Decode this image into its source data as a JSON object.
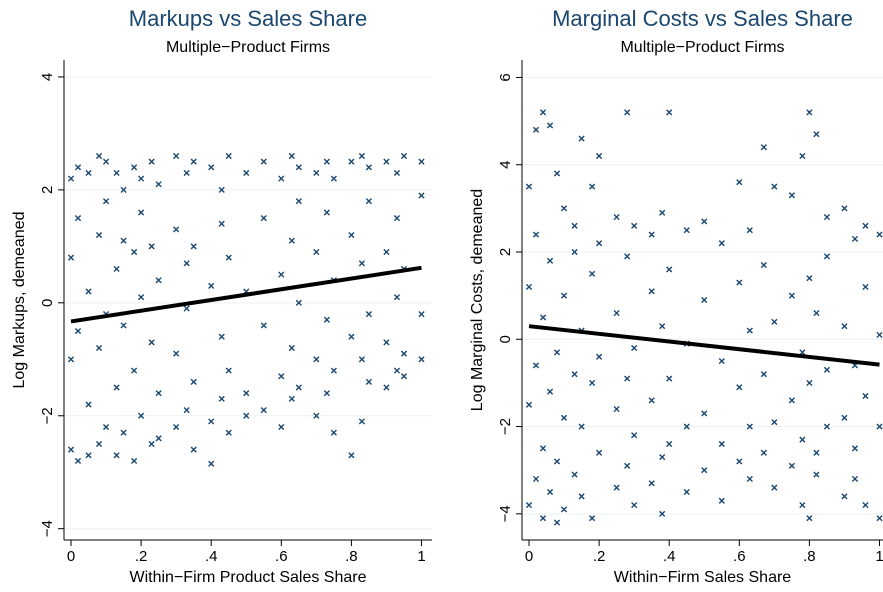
{
  "chart_data": [
    {
      "type": "scatter",
      "title": "Markups vs Sales Share",
      "subtitle": "Multiple−Product Firms",
      "x_label": "Within−Firm Product Sales Share",
      "y_label": "Log Markups, demeaned",
      "xlim": [
        -0.02,
        1.03
      ],
      "ylim": [
        -4.2,
        4.3
      ],
      "xticks": [
        0,
        {
          "value": 0.2,
          "label": ".2"
        },
        {
          "value": 0.4,
          "label": ".4"
        },
        {
          "value": 0.6,
          "label": ".6"
        },
        {
          "value": 0.8,
          "label": ".8"
        },
        1
      ],
      "yticks": [
        {
          "value": -4,
          "label": "−4"
        },
        {
          "value": -2,
          "label": "−2"
        },
        0,
        2,
        4
      ],
      "grid": true,
      "color": "#1a476f",
      "points": {
        "x": [
          0,
          0,
          0,
          0,
          0.02,
          0.02,
          0.02,
          0.02,
          0.05,
          0.05,
          0.05,
          0.05,
          0.08,
          0.08,
          0.08,
          0.08,
          0.1,
          0.1,
          0.1,
          0.1,
          0.13,
          0.13,
          0.13,
          0.13,
          0.15,
          0.15,
          0.15,
          0.15,
          0.18,
          0.18,
          0.18,
          0.18,
          0.2,
          0.2,
          0.2,
          0.2,
          0.23,
          0.23,
          0.23,
          0.23,
          0.25,
          0.25,
          0.25,
          0.25,
          0.3,
          0.3,
          0.3,
          0.3,
          0.33,
          0.33,
          0.33,
          0.33,
          0.35,
          0.35,
          0.35,
          0.35,
          0.4,
          0.4,
          0.4,
          0.4,
          0.43,
          0.43,
          0.43,
          0.43,
          0.45,
          0.45,
          0.45,
          0.45,
          0.5,
          0.5,
          0.5,
          0.5,
          0.55,
          0.55,
          0.55,
          0.55,
          0.6,
          0.6,
          0.6,
          0.6,
          0.63,
          0.63,
          0.63,
          0.63,
          0.65,
          0.65,
          0.65,
          0.65,
          0.7,
          0.7,
          0.7,
          0.7,
          0.73,
          0.73,
          0.73,
          0.73,
          0.75,
          0.75,
          0.75,
          0.75,
          0.8,
          0.8,
          0.8,
          0.8,
          0.83,
          0.83,
          0.83,
          0.83,
          0.85,
          0.85,
          0.85,
          0.85,
          0.9,
          0.9,
          0.9,
          0.9,
          0.93,
          0.93,
          0.93,
          0.93,
          0.95,
          0.95,
          0.95,
          0.95,
          1,
          1,
          1,
          1
        ],
        "y": [
          2.2,
          0.8,
          -1.0,
          -2.6,
          2.4,
          -0.5,
          1.5,
          -2.8,
          2.3,
          0.2,
          -1.8,
          -2.7,
          2.6,
          1.2,
          -0.8,
          -2.5,
          2.5,
          -0.2,
          -2.2,
          1.8,
          2.3,
          0.6,
          -1.5,
          -2.7,
          2.0,
          -0.4,
          -2.3,
          1.1,
          2.4,
          0.9,
          -1.2,
          -2.8,
          2.2,
          0.1,
          -2.0,
          1.6,
          2.5,
          -0.7,
          -2.5,
          1.0,
          2.1,
          0.4,
          -1.6,
          -2.4,
          2.6,
          1.3,
          -0.9,
          -2.2,
          2.3,
          -0.1,
          -1.9,
          0.7,
          2.5,
          1.0,
          -1.4,
          -2.6,
          2.4,
          0.3,
          -2.1,
          -2.85,
          2.0,
          -0.6,
          -1.7,
          1.4,
          2.6,
          0.8,
          -1.2,
          -2.3,
          2.3,
          0.2,
          -1.6,
          -2.0,
          2.5,
          1.5,
          -0.4,
          -1.9,
          2.2,
          0.5,
          -1.3,
          -2.2,
          2.6,
          1.1,
          -0.8,
          -1.7,
          2.4,
          0.0,
          -1.5,
          1.8,
          2.3,
          0.9,
          -1.0,
          -2.0,
          2.5,
          1.6,
          -0.3,
          -1.6,
          2.2,
          0.4,
          -1.2,
          -2.3,
          2.5,
          1.2,
          -0.6,
          -2.7,
          2.6,
          0.7,
          -1.0,
          -2.1,
          2.4,
          1.8,
          -0.2,
          -1.4,
          2.5,
          0.9,
          -0.7,
          -1.5,
          2.3,
          1.5,
          0.1,
          -1.2,
          2.6,
          0.6,
          -0.9,
          -1.3,
          2.5,
          1.9,
          -0.2,
          -1.0
        ]
      },
      "fit_line": {
        "x": [
          0,
          1
        ],
        "y": [
          -0.33,
          0.62
        ],
        "color": "#000000"
      }
    },
    {
      "type": "scatter",
      "title": "Marginal Costs vs Sales Share",
      "subtitle": "Multiple−Product Firms",
      "x_label": "Within−Firm Sales Share",
      "y_label": "Log Marginal Costs, demeaned",
      "xlim": [
        -0.02,
        1.01
      ],
      "ylim": [
        -4.6,
        6.4
      ],
      "xticks": [
        0,
        {
          "value": 0.2,
          "label": ".2"
        },
        {
          "value": 0.4,
          "label": ".4"
        },
        {
          "value": 0.6,
          "label": ".6"
        },
        {
          "value": 0.8,
          "label": ".8"
        },
        1
      ],
      "yticks": [
        {
          "value": -4,
          "label": "−4"
        },
        {
          "value": -2,
          "label": "−2"
        },
        0,
        2,
        4,
        6
      ],
      "grid": true,
      "color": "#1a476f",
      "points": {
        "x": [
          0,
          0,
          0,
          0,
          0.02,
          0.02,
          0.02,
          0.02,
          0.04,
          0.04,
          0.04,
          0.04,
          0.06,
          0.06,
          0.06,
          0.06,
          0.08,
          0.08,
          0.08,
          0.08,
          0.1,
          0.1,
          0.1,
          0.1,
          0.13,
          0.13,
          0.13,
          0.13,
          0.15,
          0.15,
          0.15,
          0.15,
          0.18,
          0.18,
          0.18,
          0.18,
          0.2,
          0.2,
          0.2,
          0.2,
          0.25,
          0.25,
          0.25,
          0.25,
          0.28,
          0.28,
          0.28,
          0.28,
          0.3,
          0.3,
          0.3,
          0.3,
          0.35,
          0.35,
          0.35,
          0.35,
          0.38,
          0.38,
          0.38,
          0.38,
          0.4,
          0.4,
          0.4,
          0.4,
          0.45,
          0.45,
          0.45,
          0.45,
          0.5,
          0.5,
          0.5,
          0.5,
          0.55,
          0.55,
          0.55,
          0.55,
          0.6,
          0.6,
          0.6,
          0.6,
          0.63,
          0.63,
          0.63,
          0.63,
          0.67,
          0.67,
          0.67,
          0.67,
          0.7,
          0.7,
          0.7,
          0.7,
          0.75,
          0.75,
          0.75,
          0.75,
          0.78,
          0.78,
          0.78,
          0.78,
          0.8,
          0.8,
          0.8,
          0.8,
          0.82,
          0.82,
          0.82,
          0.82,
          0.85,
          0.85,
          0.85,
          0.85,
          0.9,
          0.9,
          0.9,
          0.9,
          0.93,
          0.93,
          0.93,
          0.93,
          0.96,
          0.96,
          0.96,
          0.96,
          1,
          1,
          1,
          1
        ],
        "y": [
          3.5,
          1.2,
          -1.5,
          -3.8,
          4.8,
          2.4,
          -0.6,
          -3.2,
          5.2,
          0.5,
          -2.5,
          -4.1,
          4.9,
          1.8,
          -1.2,
          -3.5,
          3.8,
          -0.3,
          -2.8,
          -4.2,
          3.0,
          1.0,
          -1.8,
          -3.9,
          2.6,
          -0.8,
          -3.1,
          2.0,
          4.6,
          0.2,
          -2.0,
          -3.6,
          3.5,
          1.5,
          -1.0,
          -4.1,
          4.2,
          -0.4,
          -2.6,
          2.2,
          2.8,
          0.6,
          -1.6,
          -3.4,
          5.2,
          1.9,
          -2.9,
          -0.9,
          2.6,
          -0.2,
          -2.2,
          -3.8,
          2.4,
          1.1,
          -1.4,
          -3.3,
          2.9,
          0.3,
          -2.7,
          -4.0,
          5.2,
          1.6,
          -0.9,
          -2.4,
          2.5,
          -0.1,
          -2.0,
          -3.5,
          2.7,
          0.9,
          -1.7,
          -3.0,
          2.2,
          -0.5,
          -2.4,
          -3.7,
          3.6,
          1.3,
          -1.1,
          -2.8,
          2.5,
          0.2,
          -2.0,
          -3.2,
          4.4,
          1.7,
          -0.8,
          -2.6,
          3.5,
          0.4,
          -1.9,
          -3.4,
          3.3,
          1.0,
          -1.4,
          -2.9,
          4.2,
          -0.3,
          -2.3,
          -3.8,
          5.2,
          1.4,
          -1.0,
          -4.1,
          4.7,
          0.6,
          -2.6,
          -3.1,
          2.8,
          1.9,
          -0.7,
          -2.0,
          3.0,
          0.3,
          -1.8,
          -3.6,
          2.3,
          -0.6,
          -2.5,
          -3.2,
          2.6,
          1.2,
          -1.3,
          -3.8,
          2.4,
          0.1,
          -2.0,
          -4.1
        ]
      },
      "fit_line": {
        "x": [
          0,
          1
        ],
        "y": [
          0.3,
          -0.58
        ],
        "color": "#000000"
      }
    }
  ]
}
